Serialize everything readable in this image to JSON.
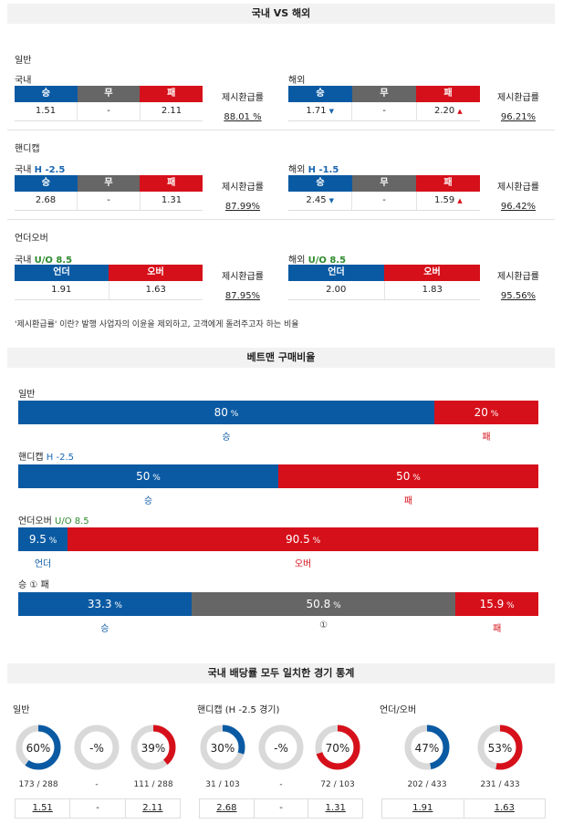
{
  "header": {
    "title": "국내 VS 해외"
  },
  "general": {
    "title": "일반",
    "domestic": {
      "label": "국내",
      "cols": [
        "승",
        "무",
        "패"
      ],
      "values": [
        "1.51",
        "-",
        "2.11"
      ],
      "rate_label": "제시환급률",
      "rate": "88.01 %"
    },
    "overseas": {
      "label": "해외",
      "cols": [
        "승",
        "무",
        "패"
      ],
      "values": [
        "1.71",
        "-",
        "2.20"
      ],
      "rate_label": "제시환급률",
      "rate": "96.21%"
    }
  },
  "handicap": {
    "title": "핸디캡",
    "domestic": {
      "label": "국내",
      "line": "H -2.5",
      "cols": [
        "승",
        "무",
        "패"
      ],
      "values": [
        "2.68",
        "-",
        "1.31"
      ],
      "rate_label": "제시환급률",
      "rate": "87.99%"
    },
    "overseas": {
      "label": "해외",
      "line": "H -1.5",
      "cols": [
        "승",
        "무",
        "패"
      ],
      "values": [
        "2.45",
        "-",
        "1.59"
      ],
      "rate_label": "제시환급률",
      "rate": "96.42%"
    }
  },
  "overunder": {
    "title": "언더오버",
    "domestic": {
      "label": "국내",
      "line": "U/O 8.5",
      "cols": [
        "언더",
        "오버"
      ],
      "values": [
        "1.91",
        "1.63"
      ],
      "rate_label": "제시환급률",
      "rate": "87.95%"
    },
    "overseas": {
      "label": "해외",
      "line": "U/O 8.5",
      "cols": [
        "언더",
        "오버"
      ],
      "values": [
        "2.00",
        "1.83"
      ],
      "rate_label": "제시환급률",
      "rate": "95.56%"
    }
  },
  "note": "'제시환급률' 이란? 발행 사업자의 이윤을 제외하고, 고객에게 돌려주고자 하는 비율",
  "betting": {
    "title": "베트맨 구매비율",
    "general": {
      "label": "일반",
      "segments": [
        {
          "value": "80",
          "unit": "%",
          "name": "승"
        },
        {
          "value": "20",
          "unit": "%",
          "name": "패"
        }
      ]
    },
    "handicap": {
      "label": "핸디캡",
      "line": "H -2.5",
      "segments": [
        {
          "value": "50",
          "unit": "%",
          "name": "승"
        },
        {
          "value": "50",
          "unit": "%",
          "name": "패"
        }
      ]
    },
    "overunder": {
      "label": "언더오버",
      "line": "U/O 8.5",
      "segments": [
        {
          "value": "9.5",
          "unit": "%",
          "name": "언더"
        },
        {
          "value": "90.5",
          "unit": "%",
          "name": "오버"
        }
      ]
    },
    "wdl": {
      "label": "승 ① 패",
      "segments": [
        {
          "value": "33.3",
          "unit": "%",
          "name": "승"
        },
        {
          "value": "50.8",
          "unit": "%",
          "name": "①"
        },
        {
          "value": "15.9",
          "unit": "%",
          "name": "패"
        }
      ]
    }
  },
  "stats": {
    "title": "국내 배당률 모두 일치한 경기 통계",
    "groups": [
      {
        "title": "일반",
        "donuts": [
          {
            "label": "60%",
            "pct": 60,
            "color": "#0a5aa3",
            "count": "173 / 288"
          },
          {
            "label": "-%",
            "pct": 0,
            "color": "#666666",
            "count": "-"
          },
          {
            "label": "39%",
            "pct": 39,
            "color": "#d6101a",
            "count": "111 / 288"
          }
        ],
        "odds": [
          "1.51",
          "-",
          "2.11"
        ]
      },
      {
        "title": "핸디캡 (H -2.5 경기)",
        "donuts": [
          {
            "label": "30%",
            "pct": 30,
            "color": "#0a5aa3",
            "count": "31 / 103"
          },
          {
            "label": "-%",
            "pct": 0,
            "color": "#666666",
            "count": "-"
          },
          {
            "label": "70%",
            "pct": 70,
            "color": "#d6101a",
            "count": "72 / 103"
          }
        ],
        "odds": [
          "2.68",
          "-",
          "1.31"
        ]
      },
      {
        "title": "언더/오버",
        "donuts": [
          {
            "label": "47%",
            "pct": 47,
            "color": "#0a5aa3",
            "count": "202 / 433"
          },
          {
            "label": "53%",
            "pct": 53,
            "color": "#d6101a",
            "count": "231 / 433"
          }
        ],
        "odds": [
          "1.91",
          "1.63"
        ]
      }
    ]
  },
  "colors": {
    "blue": "#0a5aa3",
    "gray": "#666666",
    "red": "#d6101a"
  }
}
